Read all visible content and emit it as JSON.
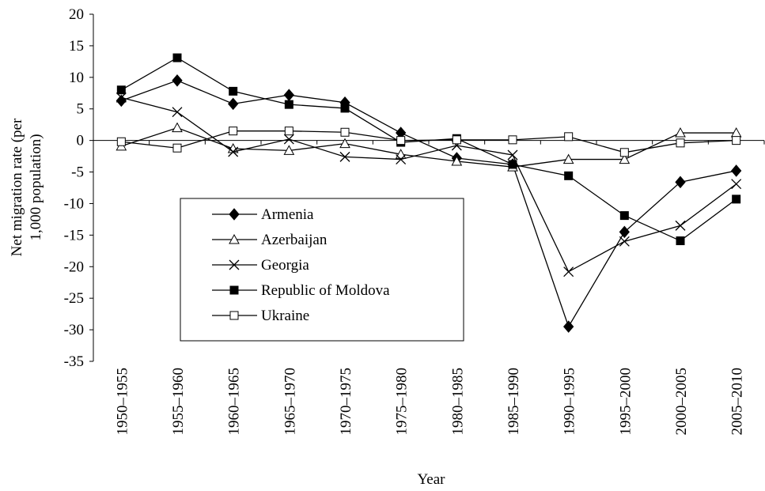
{
  "chart_data": {
    "type": "line",
    "x_label": "Year",
    "y_label_lines": [
      "Net migration rate (per",
      "1,000 population)"
    ],
    "categories": [
      "1950–1955",
      "1955–1960",
      "1960–1965",
      "1965–1970",
      "1970–1975",
      "1975–1980",
      "1980–1985",
      "1985–1990",
      "1990–1995",
      "1995–2000",
      "2000–2005",
      "2005–2010"
    ],
    "series": [
      {
        "name": "Armenia",
        "color": "#000000",
        "marker": "diamond",
        "values": [
          6.3,
          9.5,
          5.8,
          7.2,
          6.0,
          1.2,
          -2.8,
          -3.8,
          -29.5,
          -14.5,
          -6.6,
          -4.8
        ]
      },
      {
        "name": "Azerbaijan",
        "color": "#000000",
        "marker": "triangle-open",
        "values": [
          -0.9,
          2.0,
          -1.3,
          -1.6,
          -0.5,
          -2.2,
          -3.3,
          -4.2,
          -3.0,
          -3.0,
          1.2,
          1.2
        ]
      },
      {
        "name": "Georgia",
        "color": "#000000",
        "marker": "x",
        "values": [
          6.8,
          4.5,
          -1.8,
          0.2,
          -2.6,
          -3.0,
          -0.8,
          -2.3,
          -20.8,
          -16.0,
          -13.5,
          -6.9
        ]
      },
      {
        "name": "Republic of Moldova",
        "color": "#000000",
        "marker": "square",
        "values": [
          8.0,
          13.1,
          7.8,
          5.7,
          5.1,
          -0.3,
          0.3,
          -3.8,
          -5.6,
          -11.9,
          -15.9,
          -9.3
        ]
      },
      {
        "name": "Ukraine",
        "color": "#000000",
        "marker": "square-open",
        "values": [
          -0.2,
          -1.2,
          1.5,
          1.5,
          1.3,
          0.0,
          0.1,
          0.1,
          0.6,
          -1.9,
          -0.4,
          0.0
        ]
      }
    ],
    "ylim": [
      -35,
      20
    ],
    "yticks": [
      -35,
      -30,
      -25,
      -20,
      -15,
      -10,
      -5,
      0,
      5,
      10,
      15,
      20
    ],
    "legend": "lower-left"
  }
}
